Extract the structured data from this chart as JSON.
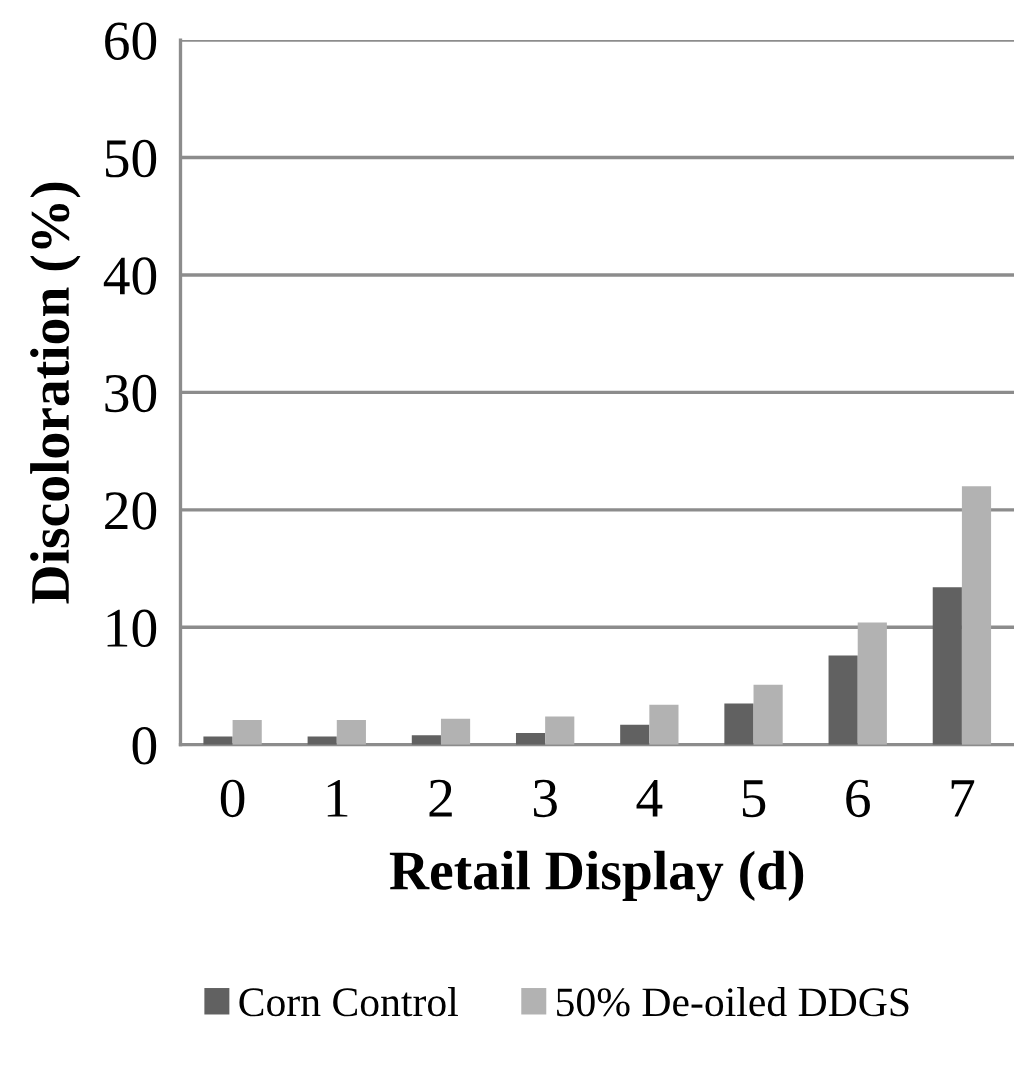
{
  "chart_data": {
    "type": "bar",
    "xlabel": "Retail Display (d)",
    "ylabel": "Discoloration (%)",
    "categories": [
      "0",
      "1",
      "2",
      "3",
      "4",
      "5",
      "6",
      "7"
    ],
    "series": [
      {
        "name": "Corn Control",
        "color": "#616161",
        "values": [
          0.7,
          0.7,
          0.8,
          1.0,
          1.7,
          3.5,
          7.6,
          13.4
        ]
      },
      {
        "name": "50% De-oiled DDGS",
        "color": "#b2b2b2",
        "values": [
          2.1,
          2.1,
          2.2,
          2.4,
          3.4,
          5.1,
          10.4,
          22.0
        ]
      }
    ],
    "ylim": [
      0,
      60
    ],
    "yticks": [
      0,
      10,
      20,
      30,
      40,
      50,
      60
    ],
    "grid": "y",
    "legend": "bottom"
  }
}
